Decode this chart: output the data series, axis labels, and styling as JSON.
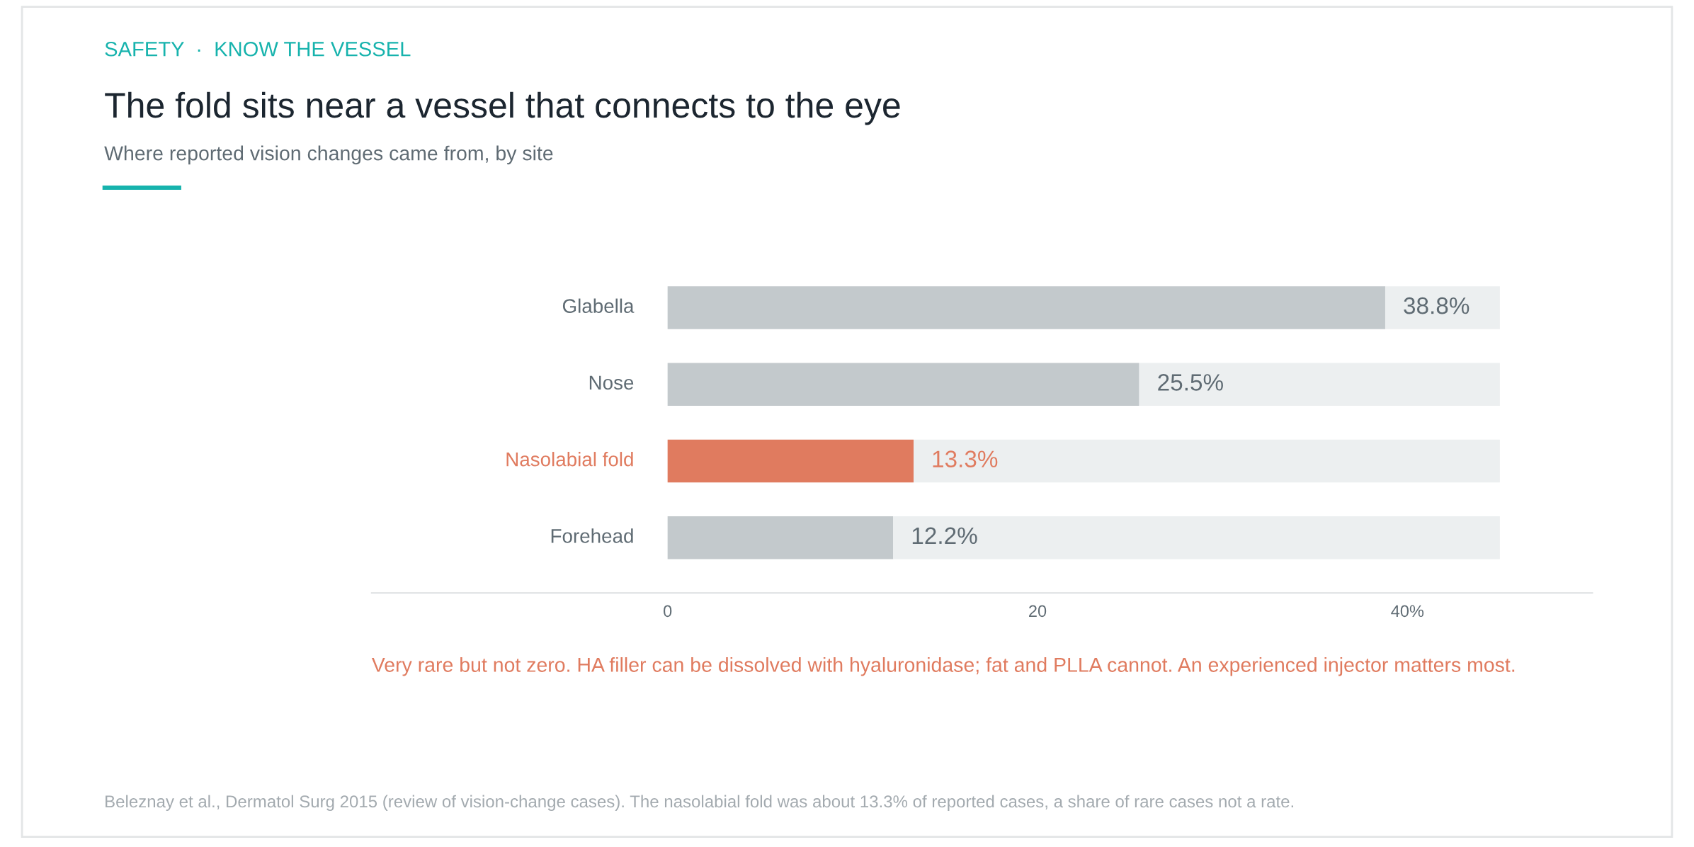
{
  "chart_data": {
    "type": "bar",
    "orientation": "horizontal",
    "title": "The fold sits near a vessel that connects to the eye",
    "subtitle": "Where reported vision changes came from, by site",
    "categories": [
      "Glabella",
      "Nose",
      "Nasolabial fold",
      "Forehead"
    ],
    "series": [
      {
        "colors": [
          "#c3c9cc",
          "#c3c9cc",
          "#e07b5f",
          "#c3c9cc"
        ],
        "values": [
          38.8,
          25.5,
          13.3,
          12.2
        ],
        "value_labels": [
          "38.8%",
          "25.5%",
          "13.3%",
          "12.2%"
        ]
      },
      {
        "color": "#eceff0",
        "values": [
          6.2,
          19.5,
          31.7,
          32.8
        ]
      }
    ],
    "stacked": true,
    "xlim": [
      -16,
      50
    ],
    "xticks": [
      0,
      20,
      {
        "value": 40,
        "label": "40%"
      }
    ],
    "grid": false,
    "legend": false,
    "annotations": [
      "SAFETY  ·  KNOW THE VESSEL",
      "Very rare but not zero. HA filler can be dissolved with hyaluronidase; fat and PLLA cannot. An experienced injector matters most.",
      "Beleznay et al., Dermatol Surg 2015 (review of vision-change cases). The nasolabial fold was about 13.3% of reported cases, a share of rare cases not a rate."
    ]
  }
}
